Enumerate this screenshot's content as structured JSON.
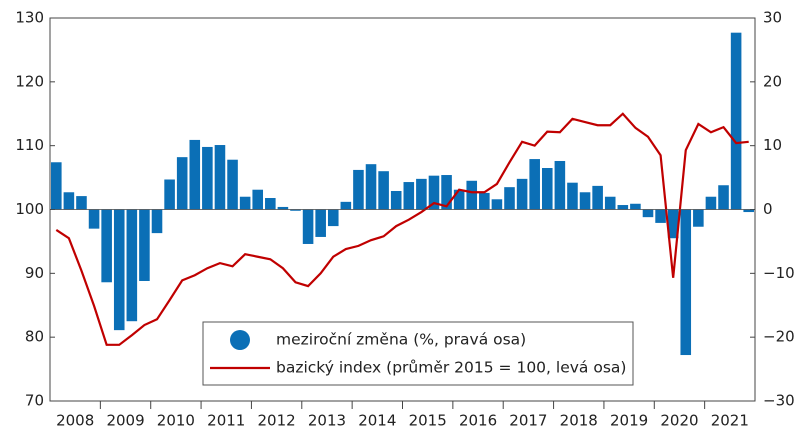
{
  "chart_data": {
    "type": "bar-line",
    "categories": [
      "2008",
      null,
      null,
      null,
      "2009",
      null,
      null,
      null,
      "2010",
      null,
      null,
      null,
      "2011",
      null,
      null,
      null,
      "2012",
      null,
      null,
      null,
      "2013",
      null,
      null,
      null,
      "2014",
      null,
      null,
      null,
      "2015",
      null,
      null,
      null,
      "2016",
      null,
      null,
      null,
      "2017",
      null,
      null,
      null,
      "2018",
      null,
      null,
      null,
      "2019",
      null,
      null,
      null,
      "2020",
      null,
      null,
      null,
      "2021",
      null,
      null,
      null
    ],
    "series": [
      {
        "name": "meziroční změna (%, pravá osa)",
        "type": "bar",
        "axis": "y2",
        "color": "#0b6fb6",
        "values": [
          7.4,
          2.7,
          2.1,
          -3.0,
          -11.4,
          -18.9,
          -17.5,
          -11.2,
          -3.7,
          4.7,
          8.2,
          10.9,
          9.8,
          10.1,
          7.8,
          2.0,
          3.1,
          1.8,
          0.4,
          -0.2,
          -5.4,
          -4.3,
          -2.6,
          1.2,
          6.2,
          7.1,
          6.0,
          2.9,
          4.3,
          4.8,
          5.3,
          5.4,
          3.1,
          4.5,
          2.6,
          1.6,
          3.5,
          4.8,
          7.9,
          6.5,
          7.6,
          4.2,
          2.7,
          3.7,
          2.0,
          0.7,
          0.9,
          -1.2,
          -2.1,
          -4.5,
          -22.8,
          -2.7,
          2.0,
          3.8,
          27.7,
          -0.4
        ]
      },
      {
        "name": "bazický index (průměr 2015 = 100, levá osa)",
        "type": "line",
        "axis": "y",
        "color": "#c00000",
        "values": [
          96.8,
          95.5,
          90.4,
          84.9,
          78.8,
          78.8,
          80.3,
          81.9,
          82.8,
          85.8,
          88.9,
          89.7,
          90.8,
          91.6,
          91.1,
          93.0,
          92.6,
          92.2,
          90.8,
          88.6,
          88.0,
          90.0,
          92.6,
          93.8,
          94.3,
          95.2,
          95.8,
          97.4,
          98.4,
          99.6,
          101.0,
          100.5,
          103.1,
          102.7,
          102.7,
          104.0,
          107.4,
          110.6,
          110.0,
          112.2,
          112.1,
          114.2,
          113.7,
          113.2,
          113.2,
          115.0,
          112.8,
          111.4,
          108.5,
          89.3,
          109.3,
          113.4,
          112.1,
          112.9,
          110.4,
          110.6
        ]
      }
    ],
    "ylim": [
      70,
      130
    ],
    "yticks": [
      70,
      80,
      90,
      100,
      110,
      120,
      130
    ],
    "y2lim": [
      -30,
      30
    ],
    "y2ticks": [
      {
        "value": -30,
        "label": "−30"
      },
      {
        "value": -20,
        "label": "−20"
      },
      {
        "value": -10,
        "label": "−10"
      },
      0,
      10,
      20,
      30
    ],
    "legend": "bottom-center"
  }
}
